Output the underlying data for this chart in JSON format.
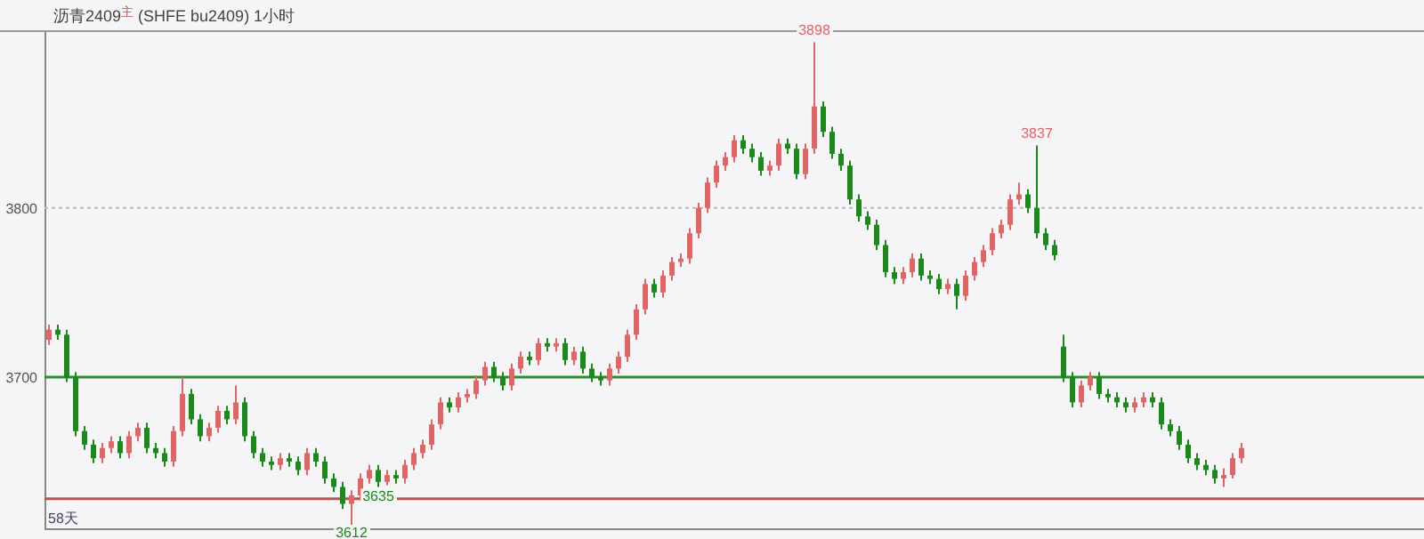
{
  "chart_data": {
    "type": "candlestick",
    "title": "沥青2409$^{主}$ (SHFE bu2409) 1小时",
    "categories": [
      null,
      null,
      null,
      null,
      null,
      null,
      null,
      null,
      null,
      null,
      null,
      null,
      null,
      null,
      null,
      null,
      null,
      null,
      null,
      null,
      null,
      null,
      null,
      null,
      null,
      null,
      null,
      null,
      null,
      null,
      null,
      null,
      null,
      null,
      null,
      null,
      null,
      null,
      null,
      null,
      null,
      null,
      null,
      null,
      null,
      null,
      null,
      null,
      null,
      null,
      null,
      null,
      null,
      null,
      null,
      null,
      null,
      null,
      null,
      null,
      null,
      null,
      null,
      null,
      null,
      null,
      null,
      null,
      null,
      null,
      null,
      null,
      null,
      null,
      null,
      null,
      null,
      null,
      null,
      null,
      null,
      null,
      null,
      null,
      null,
      null,
      null,
      null,
      null,
      null,
      null,
      null,
      null,
      null,
      null,
      null,
      null,
      null,
      null,
      null,
      null,
      null,
      null,
      null,
      null,
      null,
      null,
      null,
      null,
      null,
      null,
      null,
      null,
      null,
      null,
      null,
      null,
      null,
      null,
      null,
      null,
      null,
      null,
      null,
      null,
      null,
      null,
      null,
      null,
      null,
      null,
      null,
      null,
      null,
      null,
      null,
      null,
      null,
      null,
      null,
      null,
      null,
      null,
      null,
      null,
      null,
      null,
      null,
      null,
      null,
      null,
      null,
      null,
      null,
      null
    ],
    "ohlc": [
      [
        3722,
        3731,
        3719,
        3728
      ],
      [
        3728,
        3731,
        3722,
        3725
      ],
      [
        3725,
        3728,
        3697,
        3700
      ],
      [
        3700,
        3703,
        3665,
        3668
      ],
      [
        3668,
        3671,
        3657,
        3660
      ],
      [
        3660,
        3663,
        3649,
        3652
      ],
      [
        3652,
        3661,
        3649,
        3658
      ],
      [
        3658,
        3665,
        3655,
        3662
      ],
      [
        3662,
        3665,
        3652,
        3655
      ],
      [
        3655,
        3668,
        3652,
        3665
      ],
      [
        3665,
        3673,
        3662,
        3670
      ],
      [
        3670,
        3673,
        3655,
        3658
      ],
      [
        3658,
        3661,
        3652,
        3655
      ],
      [
        3655,
        3658,
        3647,
        3650
      ],
      [
        3650,
        3671,
        3647,
        3668
      ],
      [
        3668,
        3700,
        3665,
        3690
      ],
      [
        3690,
        3693,
        3672,
        3675
      ],
      [
        3675,
        3678,
        3662,
        3665
      ],
      [
        3665,
        3673,
        3662,
        3670
      ],
      [
        3670,
        3683,
        3667,
        3680
      ],
      [
        3680,
        3683,
        3672,
        3675
      ],
      [
        3675,
        3695,
        3672,
        3685
      ],
      [
        3685,
        3688,
        3662,
        3665
      ],
      [
        3665,
        3668,
        3652,
        3655
      ],
      [
        3655,
        3658,
        3647,
        3650
      ],
      [
        3650,
        3653,
        3645,
        3648
      ],
      [
        3648,
        3655,
        3645,
        3652
      ],
      [
        3652,
        3655,
        3647,
        3650
      ],
      [
        3650,
        3653,
        3642,
        3645
      ],
      [
        3645,
        3658,
        3642,
        3655
      ],
      [
        3655,
        3658,
        3647,
        3650
      ],
      [
        3650,
        3653,
        3637,
        3640
      ],
      [
        3640,
        3643,
        3632,
        3635
      ],
      [
        3635,
        3638,
        3622,
        3625
      ],
      [
        3625,
        3633,
        3612,
        3630
      ],
      [
        3630,
        3643,
        3627,
        3640
      ],
      [
        3640,
        3648,
        3637,
        3645
      ],
      [
        3645,
        3648,
        3635,
        3638
      ],
      [
        3638,
        3645,
        3636,
        3642
      ],
      [
        3642,
        3645,
        3637,
        3640
      ],
      [
        3640,
        3651,
        3637,
        3648
      ],
      [
        3648,
        3658,
        3645,
        3655
      ],
      [
        3655,
        3663,
        3652,
        3660
      ],
      [
        3660,
        3675,
        3657,
        3672
      ],
      [
        3672,
        3688,
        3669,
        3685
      ],
      [
        3685,
        3688,
        3679,
        3682
      ],
      [
        3682,
        3691,
        3679,
        3688
      ],
      [
        3688,
        3693,
        3685,
        3690
      ],
      [
        3690,
        3701,
        3687,
        3698
      ],
      [
        3698,
        3709,
        3695,
        3706
      ],
      [
        3706,
        3709,
        3697,
        3700
      ],
      [
        3700,
        3703,
        3692,
        3695
      ],
      [
        3695,
        3708,
        3692,
        3705
      ],
      [
        3705,
        3715,
        3702,
        3712
      ],
      [
        3712,
        3715,
        3707,
        3710
      ],
      [
        3710,
        3723,
        3707,
        3720
      ],
      [
        3720,
        3723,
        3715,
        3718
      ],
      [
        3718,
        3723,
        3715,
        3720
      ],
      [
        3720,
        3723,
        3707,
        3710
      ],
      [
        3710,
        3718,
        3707,
        3715
      ],
      [
        3715,
        3718,
        3702,
        3705
      ],
      [
        3705,
        3708,
        3697,
        3700
      ],
      [
        3700,
        3703,
        3695,
        3698
      ],
      [
        3698,
        3708,
        3695,
        3705
      ],
      [
        3705,
        3715,
        3702,
        3712
      ],
      [
        3712,
        3728,
        3709,
        3725
      ],
      [
        3725,
        3743,
        3722,
        3740
      ],
      [
        3740,
        3758,
        3737,
        3755
      ],
      [
        3755,
        3758,
        3747,
        3750
      ],
      [
        3750,
        3763,
        3747,
        3760
      ],
      [
        3760,
        3771,
        3757,
        3768
      ],
      [
        3768,
        3773,
        3765,
        3770
      ],
      [
        3770,
        3788,
        3767,
        3785
      ],
      [
        3785,
        3803,
        3782,
        3800
      ],
      [
        3800,
        3818,
        3797,
        3815
      ],
      [
        3815,
        3828,
        3812,
        3825
      ],
      [
        3825,
        3833,
        3822,
        3830
      ],
      [
        3830,
        3843,
        3827,
        3840
      ],
      [
        3840,
        3843,
        3832,
        3835
      ],
      [
        3835,
        3838,
        3827,
        3830
      ],
      [
        3830,
        3833,
        3819,
        3822
      ],
      [
        3822,
        3828,
        3819,
        3825
      ],
      [
        3825,
        3841,
        3822,
        3838
      ],
      [
        3838,
        3841,
        3832,
        3835
      ],
      [
        3835,
        3838,
        3817,
        3820
      ],
      [
        3820,
        3838,
        3817,
        3835
      ],
      [
        3835,
        3898,
        3832,
        3860
      ],
      [
        3860,
        3863,
        3842,
        3845
      ],
      [
        3845,
        3848,
        3829,
        3832
      ],
      [
        3832,
        3835,
        3822,
        3825
      ],
      [
        3825,
        3828,
        3802,
        3805
      ],
      [
        3805,
        3808,
        3792,
        3795
      ],
      [
        3795,
        3798,
        3787,
        3790
      ],
      [
        3790,
        3793,
        3775,
        3778
      ],
      [
        3778,
        3781,
        3759,
        3762
      ],
      [
        3762,
        3765,
        3755,
        3758
      ],
      [
        3758,
        3765,
        3755,
        3762
      ],
      [
        3762,
        3773,
        3759,
        3770
      ],
      [
        3770,
        3773,
        3757,
        3760
      ],
      [
        3760,
        3763,
        3755,
        3758
      ],
      [
        3758,
        3761,
        3749,
        3752
      ],
      [
        3752,
        3758,
        3749,
        3755
      ],
      [
        3755,
        3758,
        3740,
        3748
      ],
      [
        3748,
        3763,
        3745,
        3760
      ],
      [
        3760,
        3771,
        3757,
        3768
      ],
      [
        3768,
        3778,
        3765,
        3775
      ],
      [
        3775,
        3788,
        3772,
        3785
      ],
      [
        3785,
        3793,
        3782,
        3790
      ],
      [
        3790,
        3808,
        3787,
        3805
      ],
      [
        3805,
        3815,
        3802,
        3808
      ],
      [
        3808,
        3811,
        3797,
        3800
      ],
      [
        3800,
        3837,
        3782,
        3785
      ],
      [
        3785,
        3788,
        3775,
        3778
      ],
      [
        3778,
        3781,
        3769,
        3772
      ],
      [
        3718,
        3725,
        3697,
        3700
      ],
      [
        3700,
        3703,
        3682,
        3685
      ],
      [
        3685,
        3698,
        3682,
        3695
      ],
      [
        3695,
        3703,
        3692,
        3700
      ],
      [
        3700,
        3703,
        3687,
        3690
      ],
      [
        3690,
        3693,
        3685,
        3688
      ],
      [
        3688,
        3691,
        3682,
        3685
      ],
      [
        3685,
        3688,
        3679,
        3682
      ],
      [
        3682,
        3688,
        3679,
        3685
      ],
      [
        3685,
        3691,
        3682,
        3688
      ],
      [
        3688,
        3691,
        3682,
        3685
      ],
      [
        3685,
        3688,
        3669,
        3672
      ],
      [
        3672,
        3675,
        3665,
        3668
      ],
      [
        3668,
        3671,
        3657,
        3660
      ],
      [
        3660,
        3663,
        3649,
        3652
      ],
      [
        3652,
        3655,
        3645,
        3648
      ],
      [
        3648,
        3651,
        3642,
        3645
      ],
      [
        3645,
        3648,
        3637,
        3640
      ],
      [
        3640,
        3646,
        3635,
        3642
      ],
      [
        3642,
        3655,
        3640,
        3652
      ],
      [
        3652,
        3661,
        3649,
        3658
      ],
      null,
      null,
      null,
      null,
      null,
      null,
      null,
      null,
      null,
      null,
      null,
      null,
      null,
      null,
      null,
      null,
      null,
      null,
      null,
      null
    ],
    "colors": [
      "#e06666",
      "#1b8a1b",
      "#1b8a1b",
      "#1b8a1b",
      "#1b8a1b",
      "#1b8a1b",
      "#e06666",
      "#e06666",
      "#1b8a1b",
      "#e06666",
      "#e06666",
      "#1b8a1b",
      "#1b8a1b",
      "#1b8a1b",
      "#e06666",
      "#e06666",
      "#1b8a1b",
      "#1b8a1b",
      "#e06666",
      "#e06666",
      "#1b8a1b",
      "#e06666",
      "#1b8a1b",
      "#1b8a1b",
      "#1b8a1b",
      "#1b8a1b",
      "#e06666",
      "#1b8a1b",
      "#1b8a1b",
      "#e06666",
      "#1b8a1b",
      "#1b8a1b",
      "#1b8a1b",
      "#1b8a1b",
      "#e06666",
      "#e06666",
      "#e06666",
      "#1b8a1b",
      "#e06666",
      "#1b8a1b",
      "#e06666",
      "#e06666",
      "#e06666",
      "#e06666",
      "#e06666",
      "#1b8a1b",
      "#e06666",
      "#e06666",
      "#e06666",
      "#e06666",
      "#1b8a1b",
      "#1b8a1b",
      "#e06666",
      "#e06666",
      "#1b8a1b",
      "#e06666",
      "#1b8a1b",
      "#e06666",
      "#1b8a1b",
      "#e06666",
      "#1b8a1b",
      "#1b8a1b",
      "#1b8a1b",
      "#e06666",
      "#e06666",
      "#e06666",
      "#e06666",
      "#e06666",
      "#1b8a1b",
      "#e06666",
      "#e06666",
      "#e06666",
      "#e06666",
      "#e06666",
      "#e06666",
      "#e06666",
      "#e06666",
      "#e06666",
      "#1b8a1b",
      "#1b8a1b",
      "#1b8a1b",
      "#e06666",
      "#e06666",
      "#1b8a1b",
      "#1b8a1b",
      "#e06666",
      "#e06666",
      "#1b8a1b",
      "#1b8a1b",
      "#1b8a1b",
      "#1b8a1b",
      "#1b8a1b",
      "#1b8a1b",
      "#1b8a1b",
      "#1b8a1b",
      "#1b8a1b",
      "#e06666",
      "#e06666",
      "#1b8a1b",
      "#1b8a1b",
      "#1b8a1b",
      "#e06666",
      "#1b8a1b",
      "#e06666",
      "#e06666",
      "#e06666",
      "#e06666",
      "#e06666",
      "#e06666",
      "#e06666",
      "#1b8a1b",
      "#1b8a1b",
      "#1b8a1b",
      "#1b8a1b",
      "#1b8a1b",
      "#1b8a1b",
      "#e06666",
      "#e06666",
      "#1b8a1b",
      "#1b8a1b",
      "#1b8a1b",
      "#1b8a1b",
      "#e06666",
      "#e06666",
      "#1b8a1b",
      "#1b8a1b",
      "#1b8a1b",
      "#1b8a1b",
      "#1b8a1b",
      "#1b8a1b",
      "#1b8a1b",
      "#1b8a1b",
      "#e06666",
      "#e06666",
      "#e06666",
      null,
      null,
      null,
      null,
      null,
      null,
      null,
      null,
      null,
      null,
      null,
      null,
      null,
      null,
      null,
      null,
      null,
      null,
      null,
      null
    ],
    "ylim": [
      3610,
      3904
    ],
    "yticks": [
      3700,
      3800
    ],
    "ref_lines": [
      {
        "axis": "y",
        "value": 3800,
        "color": "#bbbbbb",
        "line_style": "dotted"
      },
      {
        "axis": "y",
        "value": 3700,
        "color": "#2e8b2e"
      },
      {
        "axis": "y",
        "value": 3628,
        "color": "#c0504d"
      }
    ],
    "annotations": [
      "58天",
      {
        "text": "3898",
        "y": 3898
      },
      {
        "text": "3837",
        "y": 3837
      },
      {
        "text": "3612",
        "y": 3612
      },
      {
        "text": "3635",
        "y": 3635
      }
    ]
  }
}
